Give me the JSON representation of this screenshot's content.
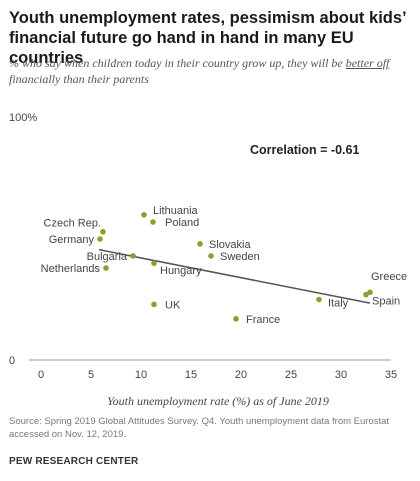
{
  "title": "Youth unemployment rates, pessimism about kids’ financial future go hand in hand in many EU countries",
  "subtitle_pre": "% who say when children today in their country grow up, they will be ",
  "subtitle_emph": "better off",
  "subtitle_post": " financially than their parents",
  "source": "Source: Spring 2019 Global Attitudes Survey. Q4. Youth unemployment data from Eurostat accessed on Nov. 12, 2019.",
  "brand": "PEW RESEARCH CENTER",
  "colors": {
    "point": "#949b2d",
    "trend": "#555555",
    "axis": "#999999",
    "text": "#444444"
  },
  "chart_data": {
    "type": "scatter",
    "xlabel": "Youth unemployment rate (%) as of June 2019",
    "ylabel": "",
    "xlim": [
      0,
      35
    ],
    "ylim": [
      0,
      100
    ],
    "xticks": [
      "0",
      "5",
      "10",
      "15",
      "20",
      "25",
      "30",
      "35"
    ],
    "yticks": [
      "0",
      "100%"
    ],
    "annotation": "Correlation = -0.61",
    "points": [
      {
        "label": "Lithuania",
        "x": 10.3,
        "y": 60
      },
      {
        "label": "Poland",
        "x": 11.2,
        "y": 57
      },
      {
        "label": "Czech Rep.",
        "x": 6.2,
        "y": 53
      },
      {
        "label": "Germany",
        "x": 5.9,
        "y": 50
      },
      {
        "label": "Slovakia",
        "x": 15.9,
        "y": 48
      },
      {
        "label": "Sweden",
        "x": 17.0,
        "y": 43
      },
      {
        "label": "Bulgaria",
        "x": 9.2,
        "y": 43
      },
      {
        "label": "Hungary",
        "x": 11.3,
        "y": 40
      },
      {
        "label": "Netherlands",
        "x": 6.5,
        "y": 38
      },
      {
        "label": "UK",
        "x": 11.3,
        "y": 23
      },
      {
        "label": "France",
        "x": 19.5,
        "y": 17
      },
      {
        "label": "Italy",
        "x": 27.8,
        "y": 25
      },
      {
        "label": "Greece",
        "x": 32.9,
        "y": 28
      },
      {
        "label": "Spain",
        "x": 32.5,
        "y": 27
      }
    ],
    "trendline": {
      "x": [
        5.8,
        32.9
      ],
      "y": [
        45.6,
        23.5
      ]
    }
  }
}
